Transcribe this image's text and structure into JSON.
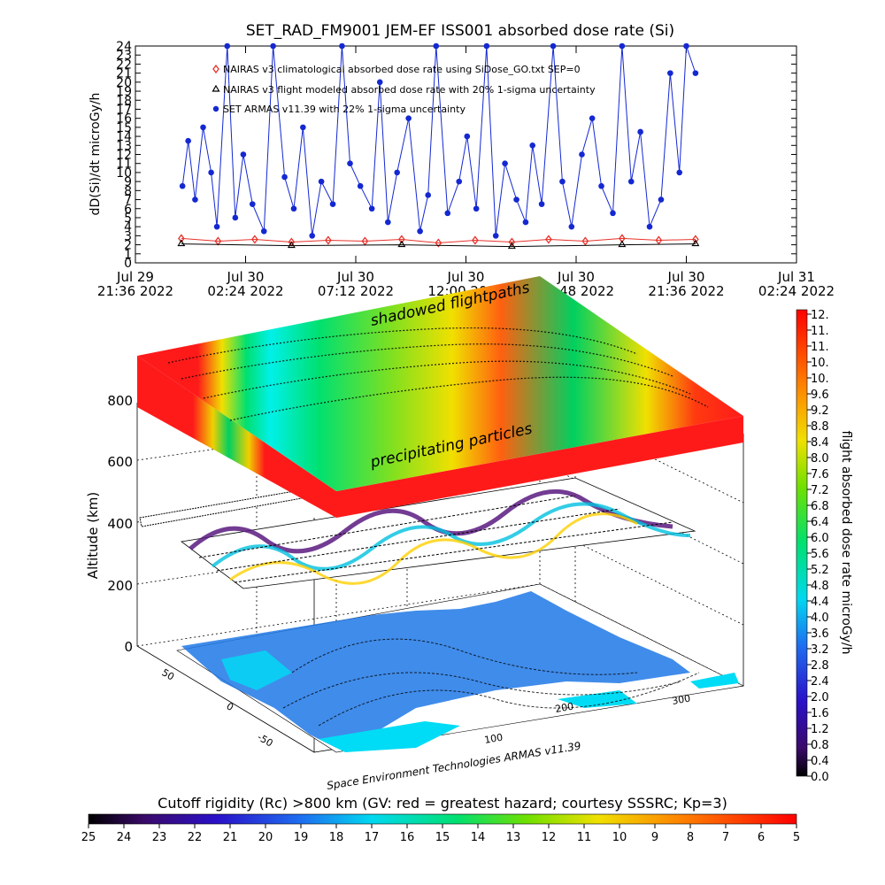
{
  "chart_data": [
    {
      "type": "line",
      "title": "SET_RAD_FM9001  JEM-EF ISS001 absorbed dose rate (Si)",
      "ylabel": "dD(Si)/dt microGy/h",
      "ylim": [
        0,
        24
      ],
      "yticks": [
        0,
        1,
        2,
        3,
        4,
        5,
        6,
        7,
        8,
        9,
        10,
        11,
        12,
        13,
        14,
        15,
        16,
        17,
        18,
        19,
        20,
        21,
        22,
        23,
        24
      ],
      "x_tick_labels": [
        {
          "line1": "Jul 29",
          "line2": "21:36 2022"
        },
        {
          "line1": "Jul 30",
          "line2": "02:24 2022"
        },
        {
          "line1": "Jul 30",
          "line2": "07:12 2022"
        },
        {
          "line1": "Jul 30",
          "line2": "12:00 2022"
        },
        {
          "line1": "Jul 30",
          "line2": "16:48 2022"
        },
        {
          "line1": "Jul 30",
          "line2": "21:36 2022"
        },
        {
          "line1": "Jul 31",
          "line2": "02:24 2022"
        }
      ],
      "xlim_hours": [
        0,
        28.8
      ],
      "legend_position": "top-left",
      "series": [
        {
          "name": "NAIRAS v3 climatological absorbed dose rate using SiDose_GO.txt SEP=0",
          "marker": "diamond",
          "color": "#e8322a",
          "x": [
            2.0,
            3.6,
            5.2,
            6.8,
            8.4,
            10.0,
            11.6,
            13.2,
            14.8,
            16.4,
            18.0,
            19.6,
            21.2,
            22.8,
            24.4
          ],
          "values": [
            2.7,
            2.4,
            2.6,
            2.3,
            2.5,
            2.4,
            2.6,
            2.2,
            2.5,
            2.3,
            2.6,
            2.4,
            2.7,
            2.5,
            2.6
          ]
        },
        {
          "name": "NAIRAS v3 flight modeled absorbed dose rate with 20% 1-sigma uncertainty",
          "marker": "triangle",
          "color": "#000000",
          "x": [
            2.0,
            6.8,
            11.6,
            16.4,
            21.2,
            24.4
          ],
          "values": [
            2.1,
            1.9,
            2.0,
            1.8,
            2.0,
            2.1
          ]
        },
        {
          "name": "SET ARMAS v11.39 with 22% 1-sigma uncertainty",
          "marker": "circle",
          "color": "#1428d2",
          "x": [
            2.05,
            2.3,
            2.6,
            2.95,
            3.3,
            3.55,
            4.0,
            4.35,
            4.7,
            5.1,
            5.6,
            6.0,
            6.5,
            6.9,
            7.3,
            7.7,
            8.1,
            8.6,
            9.0,
            9.35,
            9.8,
            10.3,
            10.65,
            11.0,
            11.4,
            11.9,
            12.4,
            12.75,
            13.1,
            13.6,
            14.1,
            14.45,
            14.85,
            15.3,
            15.7,
            16.1,
            16.6,
            17.0,
            17.3,
            17.7,
            18.2,
            18.6,
            19.0,
            19.45,
            19.9,
            20.3,
            20.8,
            21.2,
            21.6,
            22.0,
            22.4,
            22.9,
            23.3,
            23.7,
            24.0,
            24.4
          ],
          "values": [
            8.5,
            13.5,
            7.0,
            15.0,
            10.0,
            4.0,
            24.0,
            5.0,
            12.0,
            6.5,
            3.5,
            24.0,
            9.5,
            6.0,
            15.0,
            3.0,
            9.0,
            6.5,
            24.0,
            11.0,
            8.5,
            6.0,
            20.0,
            4.5,
            10.0,
            16.0,
            3.5,
            7.5,
            24.0,
            5.5,
            9.0,
            14.0,
            6.0,
            24.0,
            3.0,
            11.0,
            7.0,
            4.5,
            13.0,
            6.5,
            24.0,
            9.0,
            4.0,
            12.0,
            16.0,
            8.5,
            5.5,
            24.0,
            9.0,
            14.5,
            4.0,
            7.0,
            21.0,
            10.0,
            24.0,
            21.0
          ]
        }
      ]
    },
    {
      "type": "heatmap",
      "title": "",
      "zlabel": "Altitude (km)",
      "zticks": [
        0,
        200,
        400,
        600,
        800
      ],
      "lat_ticks": [
        -50,
        0,
        50
      ],
      "lon_ticks": [
        100,
        200,
        300
      ],
      "labels": {
        "upper": "shadowed flightpaths",
        "lower": "precipitating particles",
        "credit": "Space Environment Technologies ARMAS v11.39"
      },
      "colorbar": {
        "label": "flight absorbed dose rate microGy/h",
        "ticks": [
          "12.",
          "11.",
          "11.",
          "10.",
          "10.",
          "9.6",
          "9.2",
          "8.8",
          "8.4",
          "8.0",
          "7.6",
          "7.2",
          "6.8",
          "6.4",
          "6.0",
          "5.6",
          "5.2",
          "4.8",
          "4.4",
          "4.0",
          "3.6",
          "3.2",
          "2.8",
          "2.4",
          "2.0",
          "1.6",
          "1.2",
          "0.8",
          "0.4",
          "0.0"
        ],
        "range": [
          0,
          12
        ]
      }
    },
    {
      "type": "heatmap",
      "title": "Cutoff rigidity (Rc) >800 km (GV: red = greatest hazard; courtesy SSSRC; Kp=3)",
      "colorbar_ticks": [
        "25",
        "24",
        "23",
        "22",
        "21",
        "20",
        "19",
        "18",
        "17",
        "16",
        "15",
        "14",
        "13",
        "12",
        "11",
        "10",
        "9",
        "8",
        "7",
        "6",
        "5"
      ],
      "range": [
        25,
        5
      ]
    }
  ],
  "colors": {
    "dose_blue": "#1428d2",
    "nairas_red": "#e8322a",
    "land_blue": "#1e78e6",
    "ocean_cyan": "#00dcf5",
    "hazard_red": "#ff1a1a"
  }
}
